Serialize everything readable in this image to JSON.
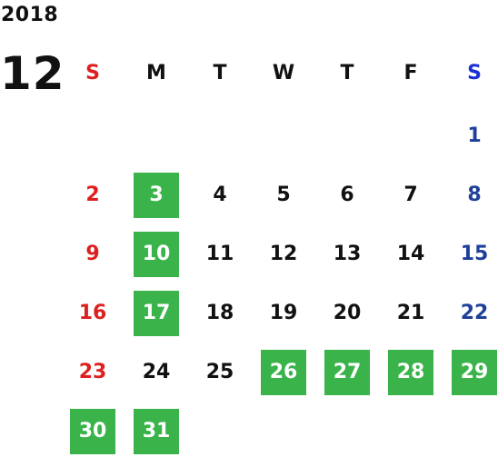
{
  "calendar": {
    "year": "2018",
    "month": "12",
    "weekdays": [
      "S",
      "M",
      "T",
      "W",
      "T",
      "F",
      "S"
    ],
    "colors": {
      "sunday": "#dd1f1f",
      "saturday": "#1f3f99",
      "highlight": "#3ab44a"
    },
    "weeks": [
      [
        null,
        null,
        null,
        null,
        null,
        null,
        {
          "day": "1"
        }
      ],
      [
        {
          "day": "2"
        },
        {
          "day": "3",
          "highlight": true
        },
        {
          "day": "4"
        },
        {
          "day": "5"
        },
        {
          "day": "6"
        },
        {
          "day": "7"
        },
        {
          "day": "8"
        }
      ],
      [
        {
          "day": "9"
        },
        {
          "day": "10",
          "highlight": true
        },
        {
          "day": "11"
        },
        {
          "day": "12"
        },
        {
          "day": "13"
        },
        {
          "day": "14"
        },
        {
          "day": "15"
        }
      ],
      [
        {
          "day": "16"
        },
        {
          "day": "17",
          "highlight": true
        },
        {
          "day": "18"
        },
        {
          "day": "19"
        },
        {
          "day": "20"
        },
        {
          "day": "21"
        },
        {
          "day": "22"
        }
      ],
      [
        {
          "day": "23"
        },
        {
          "day": "24"
        },
        {
          "day": "25"
        },
        {
          "day": "26",
          "highlight": true
        },
        {
          "day": "27",
          "highlight": true
        },
        {
          "day": "28",
          "highlight": true
        },
        {
          "day": "29",
          "highlight": true
        }
      ],
      [
        {
          "day": "30",
          "highlight": true
        },
        {
          "day": "31",
          "highlight": true
        },
        null,
        null,
        null,
        null,
        null
      ]
    ]
  }
}
